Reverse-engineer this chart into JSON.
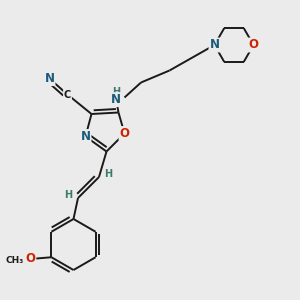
{
  "bg_color": "#ebebeb",
  "bond_color": "#1a1a1a",
  "bond_width": 1.4,
  "atom_colors": {
    "C": "#1a1a1a",
    "N": "#1a5c7a",
    "O": "#cc2200",
    "H": "#3a7a6a"
  },
  "fs_large": 8.5,
  "fs_small": 7.0,
  "fs_tiny": 6.5
}
